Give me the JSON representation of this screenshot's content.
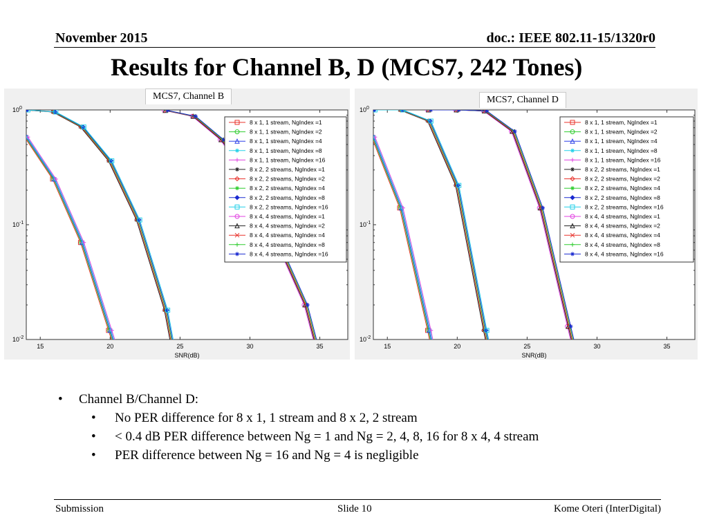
{
  "header": {
    "date": "November 2015",
    "doc": "doc.: IEEE 802.11-15/1320r0"
  },
  "title": "Results for Channel B, D (MCS7, 242 Tones)",
  "bullets": {
    "main": "Channel B/Channel D:",
    "sub": [
      "No PER difference for 8 x 1, 1 stream and 8 x 2, 2 stream",
      "< 0.4 dB PER difference between Ng = 1 and Ng = 2, 4, 8, 16 for 8 x 4, 4 stream",
      "PER difference between Ng = 16 and Ng = 4 is negligible"
    ]
  },
  "footer": {
    "left": "Submission",
    "center": "Slide 10",
    "right": "Kome Oteri (InterDigital)"
  },
  "legend_entries": [
    {
      "label": "8 x 1, 1 stream, NgIndex =1",
      "color": "#e8302a",
      "marker": "square"
    },
    {
      "label": "8 x 1, 1 stream, NgIndex =2",
      "color": "#2ecc2e",
      "marker": "circle"
    },
    {
      "label": "8 x 1, 1 stream, NgIndex =4",
      "color": "#2a3fe8",
      "marker": "triangle"
    },
    {
      "label": "8 x 1, 1 stream, NgIndex =8",
      "color": "#22d0e8",
      "marker": "star"
    },
    {
      "label": "8 x 1, 1 stream, NgIndex =16",
      "color": "#e040e0",
      "marker": "plus"
    },
    {
      "label": "8 x 2, 2 streams, NgIndex =1",
      "color": "#222222",
      "marker": "asterisk"
    },
    {
      "label": "8 x 2, 2 streams, NgIndex =2",
      "color": "#e8302a",
      "marker": "diamond"
    },
    {
      "label": "8 x 2, 2 streams, NgIndex =4",
      "color": "#2ecc2e",
      "marker": "asterisk"
    },
    {
      "label": "8 x 2, 2 streams, NgIndex =8",
      "color": "#1a2ad0",
      "marker": "diamond-filled"
    },
    {
      "label": "8 x 2, 2 streams, NgIndex =16",
      "color": "#22d0e8",
      "marker": "square"
    },
    {
      "label": "8 x 4, 4 streams, NgIndex =1",
      "color": "#e040e0",
      "marker": "circle"
    },
    {
      "label": "8 x 4, 4 streams, NgIndex =2",
      "color": "#222222",
      "marker": "triangle"
    },
    {
      "label": "8 x 4, 4 streams, NgIndex =4",
      "color": "#e8302a",
      "marker": "x"
    },
    {
      "label": "8 x 4, 4 streams, NgIndex =8",
      "color": "#2ecc2e",
      "marker": "plus"
    },
    {
      "label": "8 x 4, 4 streams, NgIndex =16",
      "color": "#1a2ad0",
      "marker": "asterisk"
    }
  ],
  "chart_data": [
    {
      "type": "line",
      "title": "MCS7, Channel B",
      "xlabel": "SNR(dB)",
      "ylabel": "",
      "xlim": [
        14,
        37
      ],
      "ylim": [
        0.01,
        1
      ],
      "yscale": "log",
      "grid": false,
      "legend_position": "top-right",
      "xticks": [
        15,
        20,
        25,
        30,
        35
      ],
      "yticks": [
        {
          "value": 1,
          "label": "10^0"
        },
        {
          "value": 0.1,
          "label": "10^-1"
        },
        {
          "value": 0.01,
          "label": "10^-2"
        }
      ],
      "curve_groups": [
        {
          "stream_config": "8 x 1, 1 stream",
          "x": [
            14,
            16,
            18,
            20,
            21
          ],
          "y": [
            0.58,
            0.25,
            0.07,
            0.012,
            0.005
          ]
        },
        {
          "stream_config": "8 x 2, 2 streams",
          "x": [
            14,
            16,
            18,
            20,
            22,
            24,
            25
          ],
          "y": [
            1,
            0.96,
            0.71,
            0.36,
            0.11,
            0.018,
            0.004
          ]
        },
        {
          "stream_config": "8 x 4, 4 streams",
          "x": [
            24,
            26,
            28,
            30,
            32,
            34,
            35.5
          ],
          "y": [
            0.99,
            0.88,
            0.55,
            0.25,
            0.07,
            0.02,
            0.004
          ]
        }
      ]
    },
    {
      "type": "line",
      "title": "MCS7, Channel D",
      "xlabel": "SNR(dB)",
      "ylabel": "",
      "xlim": [
        14,
        37
      ],
      "ylim": [
        0.01,
        1
      ],
      "yscale": "log",
      "grid": false,
      "legend_position": "top-right",
      "xticks": [
        15,
        20,
        25,
        30,
        35
      ],
      "yticks": [
        {
          "value": 1,
          "label": "10^0"
        },
        {
          "value": 0.1,
          "label": "10^-1"
        },
        {
          "value": 0.01,
          "label": "10^-2"
        }
      ],
      "curve_groups": [
        {
          "stream_config": "8 x 1, 1 stream",
          "x": [
            14,
            16,
            18,
            19
          ],
          "y": [
            0.58,
            0.14,
            0.012,
            0.003
          ]
        },
        {
          "stream_config": "8 x 2, 2 streams",
          "x": [
            14,
            16,
            18,
            20,
            22,
            23
          ],
          "y": [
            1,
            1,
            0.8,
            0.22,
            0.012,
            0.003
          ]
        },
        {
          "stream_config": "8 x 4, 4 streams",
          "x": [
            18,
            20,
            22,
            24,
            26,
            28,
            29
          ],
          "y": [
            1,
            1,
            0.98,
            0.65,
            0.14,
            0.013,
            0.004
          ]
        }
      ]
    }
  ]
}
